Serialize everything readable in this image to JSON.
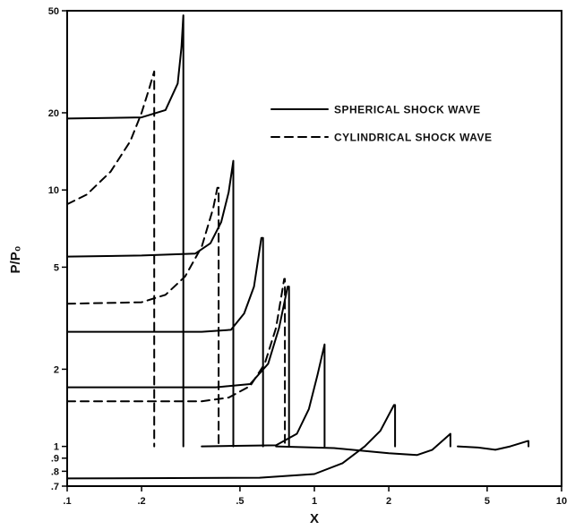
{
  "chart_data": {
    "type": "line",
    "title": "",
    "xlabel": "X",
    "ylabel": "P/P₀",
    "x_scale": "log",
    "y_scale": "log",
    "xlim": [
      0.1,
      10
    ],
    "ylim": [
      0.7,
      50
    ],
    "x_ticks": [
      {
        "value": 0.1,
        "label": ".1"
      },
      {
        "value": 0.2,
        "label": ".2"
      },
      {
        "value": 0.5,
        "label": ".5"
      },
      {
        "value": 1,
        "label": "1"
      },
      {
        "value": 2,
        "label": "2"
      },
      {
        "value": 5,
        "label": "5"
      },
      {
        "value": 10,
        "label": "10"
      }
    ],
    "y_ticks": [
      {
        "value": 0.7,
        "label": ".7"
      },
      {
        "value": 0.8,
        "label": ".8"
      },
      {
        "value": 0.9,
        "label": ".9"
      },
      {
        "value": 1,
        "label": "1"
      },
      {
        "value": 2,
        "label": "2"
      },
      {
        "value": 5,
        "label": "5"
      },
      {
        "value": 10,
        "label": "10"
      },
      {
        "value": 20,
        "label": "20"
      },
      {
        "value": 50,
        "label": "50"
      }
    ],
    "legend_position": "top-right",
    "grid": false,
    "series": [
      {
        "name": "SPHERICAL SHOCK WAVE",
        "style": "solid",
        "profiles": [
          [
            [
              0.1,
              19
            ],
            [
              0.2,
              19.2
            ],
            [
              0.25,
              20.5
            ],
            [
              0.28,
              26
            ],
            [
              0.29,
              36
            ],
            [
              0.295,
              48
            ],
            [
              0.295,
              1.0
            ]
          ],
          [
            [
              0.1,
              5.5
            ],
            [
              0.2,
              5.55
            ],
            [
              0.33,
              5.65
            ],
            [
              0.38,
              6.2
            ],
            [
              0.42,
              7.5
            ],
            [
              0.45,
              9.8
            ],
            [
              0.47,
              13
            ],
            [
              0.47,
              1.0
            ]
          ],
          [
            [
              0.1,
              2.8
            ],
            [
              0.35,
              2.8
            ],
            [
              0.46,
              2.85
            ],
            [
              0.52,
              3.3
            ],
            [
              0.57,
              4.2
            ],
            [
              0.61,
              6.5
            ],
            [
              0.62,
              6.5
            ],
            [
              0.62,
              1.0
            ]
          ],
          [
            [
              0.1,
              1.7
            ],
            [
              0.4,
              1.7
            ],
            [
              0.55,
              1.75
            ],
            [
              0.65,
              2.1
            ],
            [
              0.72,
              2.9
            ],
            [
              0.78,
              4.2
            ],
            [
              0.79,
              4.2
            ],
            [
              0.79,
              1.0
            ]
          ],
          [
            [
              0.35,
              1.0
            ],
            [
              0.7,
              1.01
            ],
            [
              0.85,
              1.12
            ],
            [
              0.95,
              1.4
            ],
            [
              1.03,
              1.9
            ],
            [
              1.1,
              2.5
            ],
            [
              1.1,
              1.0
            ]
          ],
          [
            [
              0.1,
              0.75
            ],
            [
              0.6,
              0.755
            ],
            [
              1.0,
              0.78
            ],
            [
              1.3,
              0.86
            ],
            [
              1.6,
              1.0
            ],
            [
              1.85,
              1.15
            ],
            [
              2.1,
              1.45
            ],
            [
              2.12,
              1.45
            ],
            [
              2.12,
              1.0
            ]
          ],
          [
            [
              0.7,
              1.0
            ],
            [
              1.2,
              0.985
            ],
            [
              2.0,
              0.94
            ],
            [
              2.6,
              0.925
            ],
            [
              3.0,
              0.97
            ],
            [
              3.4,
              1.08
            ],
            [
              3.55,
              1.12
            ],
            [
              3.55,
              1.0
            ]
          ],
          [
            [
              3.8,
              1.0
            ],
            [
              4.6,
              0.99
            ],
            [
              5.4,
              0.97
            ],
            [
              6.2,
              1.0
            ],
            [
              7.3,
              1.05
            ],
            [
              7.35,
              1.05
            ],
            [
              7.35,
              1.0
            ]
          ]
        ]
      },
      {
        "name": "CYLINDRICAL SHOCK WAVE",
        "style": "dashed",
        "profiles": [
          [
            [
              0.1,
              8.8
            ],
            [
              0.12,
              9.6
            ],
            [
              0.15,
              11.8
            ],
            [
              0.18,
              15.5
            ],
            [
              0.2,
              20
            ],
            [
              0.215,
              25
            ],
            [
              0.225,
              29
            ],
            [
              0.225,
              1.0
            ]
          ],
          [
            [
              0.1,
              3.6
            ],
            [
              0.2,
              3.65
            ],
            [
              0.25,
              3.9
            ],
            [
              0.3,
              4.6
            ],
            [
              0.35,
              6.0
            ],
            [
              0.39,
              8.5
            ],
            [
              0.405,
              10.2
            ],
            [
              0.41,
              10.2
            ],
            [
              0.41,
              1.0
            ]
          ],
          [
            [
              0.1,
              1.5
            ],
            [
              0.35,
              1.5
            ],
            [
              0.45,
              1.55
            ],
            [
              0.55,
              1.72
            ],
            [
              0.63,
              2.1
            ],
            [
              0.7,
              2.9
            ],
            [
              0.74,
              4.0
            ],
            [
              0.755,
              4.5
            ],
            [
              0.76,
              4.5
            ],
            [
              0.76,
              1.0
            ]
          ]
        ]
      }
    ]
  }
}
